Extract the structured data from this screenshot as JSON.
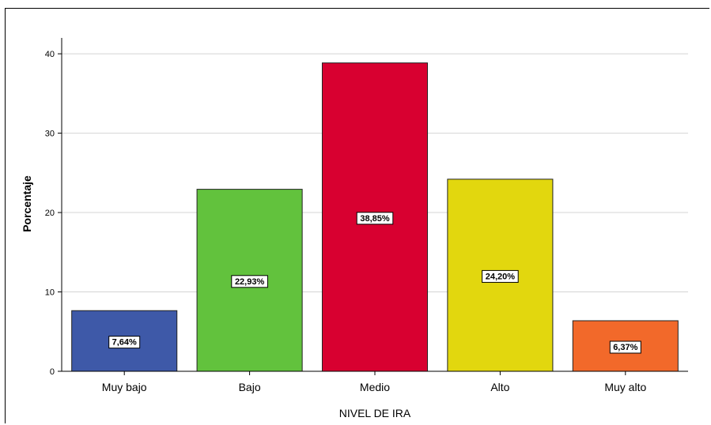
{
  "chart_data": {
    "type": "bar",
    "title": "",
    "xlabel": "NIVEL DE IRA",
    "ylabel": "Porcentaje",
    "categories": [
      "Muy bajo",
      "Bajo",
      "Medio",
      "Alto",
      "Muy alto"
    ],
    "values": [
      7.64,
      22.93,
      38.85,
      24.2,
      6.37
    ],
    "value_labels": [
      "7,64%",
      "22,93%",
      "38,85%",
      "24,20%",
      "6,37%"
    ],
    "colors": [
      "#3e59a8",
      "#62c23d",
      "#d80030",
      "#e2d70e",
      "#f2692a"
    ],
    "yticks": [
      0,
      10,
      20,
      30,
      40
    ],
    "ylim": [
      0,
      42
    ],
    "grid": true,
    "legend": "none"
  }
}
